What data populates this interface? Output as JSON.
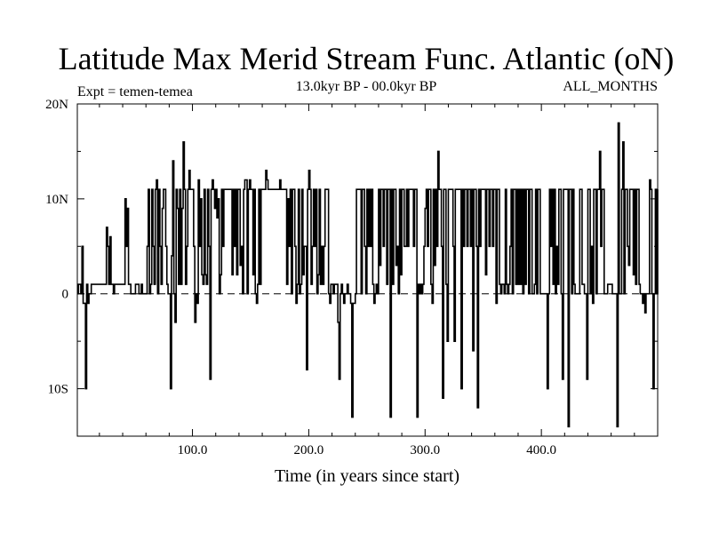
{
  "chart_data": {
    "type": "line",
    "title": "Latitude Max Merid Stream Func. Atlantic (oN)",
    "subtitle_left": "Expt = temen-temea",
    "subtitle_center": "13.0kyr BP - 00.0kyr BP",
    "subtitle_right": "ALL_MONTHS",
    "xlabel": "Time (in years since start)",
    "ylabel": "",
    "xlim": [
      1,
      500
    ],
    "ylim": [
      -15,
      20
    ],
    "x_ticks": [
      100,
      200,
      300,
      400
    ],
    "x_tick_labels": [
      "100.0",
      "200.0",
      "300.0",
      "400.0"
    ],
    "y_ticks": [
      -10,
      0,
      10,
      20
    ],
    "y_tick_labels": [
      "10S",
      "0",
      "10N",
      "20N"
    ],
    "reference_line": {
      "y": 0,
      "style": "dashed"
    },
    "grid": false,
    "line_color": "#000000",
    "series": [
      {
        "values": [
          0,
          1,
          1,
          0,
          5,
          -1,
          -1,
          -10,
          1,
          -1,
          0,
          0,
          1,
          1,
          1,
          1,
          1,
          1,
          1,
          1,
          1,
          1,
          1,
          1,
          1,
          7,
          5,
          1,
          6,
          1,
          1,
          0,
          1,
          1,
          1,
          1,
          1,
          1,
          1,
          1,
          1,
          10,
          5,
          9,
          1,
          1,
          0,
          0,
          0,
          0,
          1,
          1,
          1,
          0,
          0,
          1,
          0,
          0,
          0,
          0,
          5,
          11,
          0,
          1,
          11,
          5,
          1,
          11,
          12,
          0,
          11,
          5,
          1,
          9,
          11,
          11,
          5,
          1,
          0,
          0,
          -10,
          4,
          14,
          0,
          -3,
          11,
          9,
          1,
          11,
          1,
          9,
          16,
          11,
          1,
          5,
          11,
          13,
          11,
          11,
          11,
          5,
          -3,
          0,
          -1,
          12,
          5,
          10,
          2,
          1,
          11,
          2,
          1,
          11,
          5,
          -9,
          11,
          12,
          11,
          9,
          11,
          8,
          10,
          0,
          2,
          11,
          5,
          11,
          11,
          11,
          11,
          11,
          11,
          11,
          2,
          11,
          5,
          11,
          2,
          11,
          11,
          3,
          5,
          0,
          11,
          12,
          12,
          0,
          11,
          12,
          11,
          11,
          2,
          11,
          0,
          -1,
          1,
          11,
          1,
          11,
          11,
          11,
          11,
          13,
          12,
          11,
          11,
          11,
          11,
          11,
          11,
          11,
          11,
          11,
          11,
          12,
          11,
          11,
          11,
          11,
          11,
          1,
          10,
          5,
          11,
          0,
          11,
          11,
          5,
          -1,
          1,
          11,
          0,
          1,
          11,
          2,
          5,
          5,
          -8,
          11,
          13,
          11,
          1,
          5,
          11,
          5,
          11,
          0,
          2,
          11,
          1,
          5,
          1,
          5,
          11,
          11,
          11,
          0,
          -1,
          1,
          1,
          0,
          1,
          1,
          1,
          -3,
          -9,
          0,
          1,
          0,
          -1,
          0,
          0,
          1,
          0,
          0,
          -1,
          -13,
          -1,
          -1,
          0,
          11,
          11,
          11,
          11,
          0,
          11,
          11,
          5,
          0,
          11,
          5,
          11,
          5,
          11,
          1,
          -1,
          0,
          1,
          0,
          11,
          3,
          11,
          11,
          5,
          11,
          11,
          1,
          11,
          11,
          -13,
          11,
          1,
          11,
          11,
          3,
          5,
          0,
          11,
          2,
          11,
          11,
          5,
          5,
          11,
          5,
          11,
          11,
          11,
          11,
          5,
          11,
          11,
          -13,
          1,
          0,
          1,
          0,
          1,
          5,
          9,
          11,
          5,
          11,
          11,
          1,
          -1,
          11,
          3,
          11,
          5,
          15,
          11,
          11,
          5,
          -11,
          11,
          11,
          1,
          -5,
          11,
          11,
          11,
          11,
          5,
          -5,
          11,
          11,
          11,
          11,
          11,
          -10,
          11,
          5,
          11,
          11,
          5,
          11,
          11,
          5,
          11,
          -6,
          11,
          11,
          5,
          -12,
          11,
          5,
          11,
          11,
          11,
          11,
          2,
          11,
          11,
          5,
          11,
          11,
          5,
          11,
          11,
          -1,
          11,
          11,
          1,
          0,
          1,
          1,
          0,
          11,
          1,
          0,
          1,
          5,
          11,
          0,
          11,
          11,
          1,
          11,
          1,
          11,
          1,
          11,
          0,
          11,
          1,
          11,
          11,
          0,
          11,
          11,
          0,
          0,
          1,
          11,
          0,
          11,
          11,
          0,
          0,
          0,
          0,
          0,
          0,
          -10,
          0,
          11,
          5,
          11,
          1,
          11,
          0,
          5,
          1,
          11,
          11,
          0,
          -9,
          11,
          11,
          11,
          11,
          -14,
          11,
          11,
          0,
          11,
          1,
          0,
          0,
          0,
          0,
          11,
          11,
          1,
          1,
          0,
          0,
          -9,
          11,
          11,
          0,
          5,
          -1,
          11,
          11,
          0,
          11,
          11,
          15,
          5,
          11,
          11,
          0,
          0,
          0,
          1,
          1,
          1,
          1,
          0,
          0,
          0,
          0,
          -14,
          18,
          0,
          0,
          11,
          16,
          0,
          11,
          11,
          5,
          3,
          11,
          11,
          11,
          2,
          11,
          1,
          11,
          11,
          1,
          0,
          0,
          -1,
          0,
          -2,
          0,
          0,
          0,
          12,
          11,
          0,
          -10,
          0,
          11,
          0,
          11
        ]
      }
    ]
  }
}
